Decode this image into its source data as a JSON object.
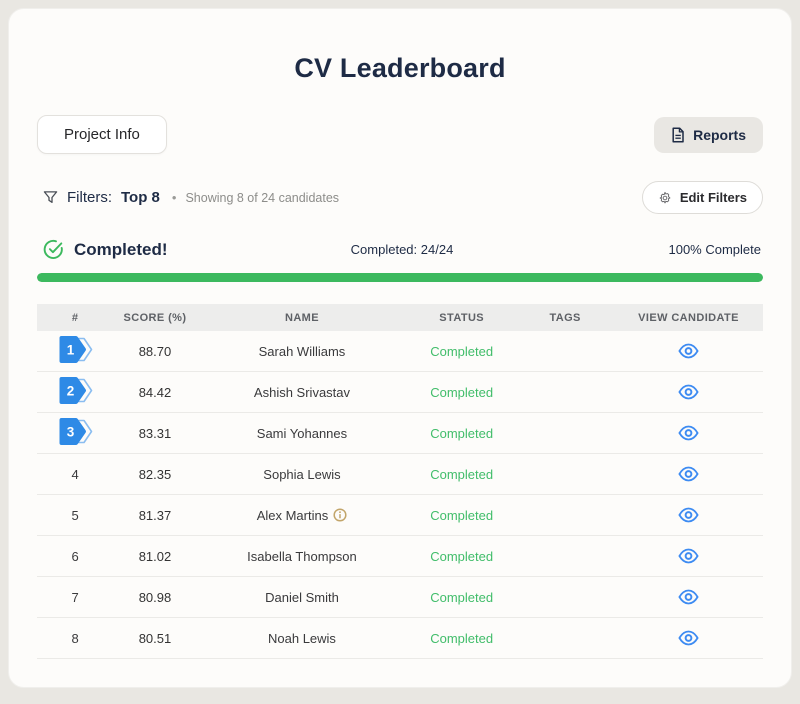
{
  "page": {
    "title": "CV Leaderboard"
  },
  "toolbar": {
    "project_info_label": "Project Info",
    "reports_label": "Reports"
  },
  "filters": {
    "label": "Filters:",
    "value": "Top 8",
    "separator": "•",
    "summary": "Showing 8 of 24 candidates",
    "edit_label": "Edit Filters"
  },
  "progress": {
    "status_label": "Completed!",
    "completed_label": "Completed: 24/24",
    "percent_label": "100% Complete",
    "percent": 100
  },
  "colors": {
    "accent_green": "#3cb95e",
    "status_green": "#41bd6a",
    "badge_blue": "#2e8ae6",
    "badge_outline_blue": "#8bbdf0",
    "eye_blue": "#3d8bf2",
    "info_gold": "#c2a56a",
    "title_navy": "#1e2b45"
  },
  "table": {
    "columns": [
      "#",
      "SCORE (%)",
      "NAME",
      "STATUS",
      "TAGS",
      "VIEW CANDIDATE"
    ],
    "rows": [
      {
        "rank": "1",
        "badge": true,
        "score": "88.70",
        "name": "Sarah Williams",
        "status": "Completed",
        "tags": "",
        "info": false
      },
      {
        "rank": "2",
        "badge": true,
        "score": "84.42",
        "name": "Ashish Srivastav",
        "status": "Completed",
        "tags": "",
        "info": false
      },
      {
        "rank": "3",
        "badge": true,
        "score": "83.31",
        "name": "Sami Yohannes",
        "status": "Completed",
        "tags": "",
        "info": false
      },
      {
        "rank": "4",
        "badge": false,
        "score": "82.35",
        "name": "Sophia Lewis",
        "status": "Completed",
        "tags": "",
        "info": false
      },
      {
        "rank": "5",
        "badge": false,
        "score": "81.37",
        "name": "Alex Martins",
        "status": "Completed",
        "tags": "",
        "info": true
      },
      {
        "rank": "6",
        "badge": false,
        "score": "81.02",
        "name": "Isabella Thompson",
        "status": "Completed",
        "tags": "",
        "info": false
      },
      {
        "rank": "7",
        "badge": false,
        "score": "80.98",
        "name": "Daniel Smith",
        "status": "Completed",
        "tags": "",
        "info": false
      },
      {
        "rank": "8",
        "badge": false,
        "score": "80.51",
        "name": "Noah Lewis",
        "status": "Completed",
        "tags": "",
        "info": false
      }
    ]
  }
}
